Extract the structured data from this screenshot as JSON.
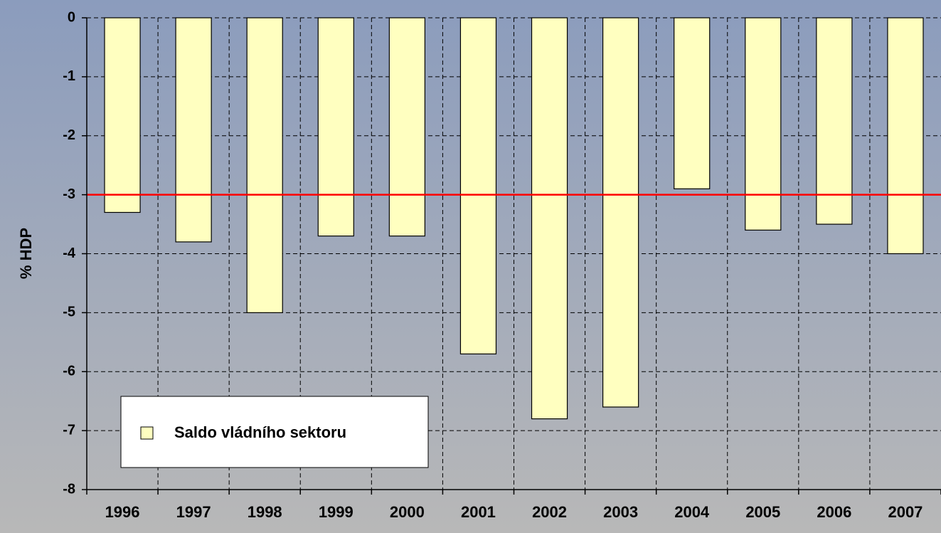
{
  "chart_data": {
    "type": "bar",
    "y_label": "% HDP",
    "categories": [
      "1996",
      "1997",
      "1998",
      "1999",
      "2000",
      "2001",
      "2002",
      "2003",
      "2004",
      "2005",
      "2006",
      "2007"
    ],
    "series": [
      {
        "name": "Saldo vládního sektoru",
        "color": "#ffffc0",
        "values": [
          -3.3,
          -3.8,
          -5.0,
          -3.7,
          -3.7,
          -5.7,
          -6.8,
          -6.6,
          -2.9,
          -3.6,
          -3.5,
          -4.0
        ]
      }
    ],
    "reference_line": {
      "value": -3,
      "color": "#ff0000"
    },
    "ylim": [
      -8,
      0
    ],
    "yticks": [
      0,
      -1,
      -2,
      -3,
      -4,
      -5,
      -6,
      -7,
      -8
    ],
    "grid": true,
    "legend": "lower left"
  }
}
